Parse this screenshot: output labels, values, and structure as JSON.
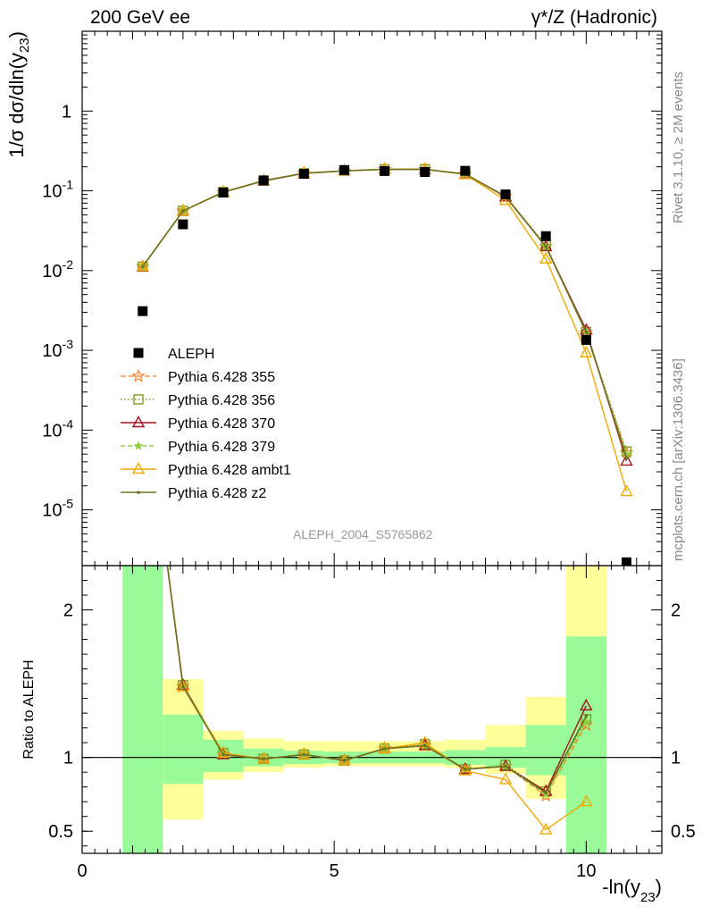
{
  "header": {
    "left": "200 GeV ee",
    "right": "γ*/Z (Hadronic)"
  },
  "side_labels": {
    "rivet": "Rivet 3.1.10, ≥ 2M events",
    "mcplots": "mcplots.cern.ch [arXiv:1306.3436]"
  },
  "analysis_tag": "ALEPH_2004_S5765862",
  "colors": {
    "aleph": "#000000",
    "p355": "#ff7f27",
    "p356": "#7d9d21",
    "p370": "#a5141e",
    "p379": "#8fcf3f",
    "ambt1": "#f2a900",
    "z2": "#707020",
    "band_inner": "#98fb98",
    "band_outer": "#ffff99"
  },
  "chart_data": [
    {
      "type": "line",
      "name": "main",
      "ylabel": "1/σ dσ/dln(y23)",
      "yscale": "log",
      "ylim": [
        2e-06,
        10
      ],
      "xlim": [
        0,
        11.5
      ],
      "y_ticks": [
        "10^-5",
        "10^-4",
        "10^-3",
        "10^-2",
        "10^-1",
        "1"
      ],
      "x": [
        1.2,
        2.0,
        2.8,
        3.6,
        4.4,
        5.2,
        6.0,
        6.8,
        7.6,
        8.4,
        9.2,
        10.0,
        10.8
      ],
      "series": [
        {
          "name": "ALEPH",
          "marker": "square",
          "values": [
            0.0031,
            0.038,
            0.095,
            0.135,
            0.163,
            0.182,
            0.177,
            0.172,
            0.178,
            0.09,
            0.027,
            0.00135,
            2.2e-06
          ]
        },
        {
          "name": "Pythia 6.428 355",
          "marker": "star",
          "values": [
            0.0112,
            0.056,
            0.096,
            0.134,
            0.166,
            0.178,
            0.186,
            0.186,
            0.162,
            0.085,
            0.02,
            0.00165,
            5.2e-05
          ]
        },
        {
          "name": "Pythia 6.428 356",
          "marker": "open-square",
          "values": [
            0.0112,
            0.056,
            0.097,
            0.134,
            0.166,
            0.179,
            0.187,
            0.187,
            0.163,
            0.085,
            0.021,
            0.0017,
            5.4e-05
          ]
        },
        {
          "name": "Pythia 6.428 370",
          "marker": "open-triangle",
          "values": [
            0.0112,
            0.056,
            0.096,
            0.133,
            0.165,
            0.178,
            0.186,
            0.186,
            0.162,
            0.084,
            0.02,
            0.0018,
            4.1e-05
          ]
        },
        {
          "name": "Pythia 6.428 379",
          "marker": "small-star",
          "values": [
            0.0112,
            0.056,
            0.096,
            0.134,
            0.166,
            0.178,
            0.186,
            0.186,
            0.162,
            0.085,
            0.02,
            0.00165,
            5e-05
          ]
        },
        {
          "name": "Pythia 6.428 ambt1",
          "marker": "open-triangle",
          "values": [
            0.0113,
            0.056,
            0.097,
            0.134,
            0.166,
            0.178,
            0.187,
            0.188,
            0.16,
            0.076,
            0.014,
            0.00093,
            1.7e-05
          ]
        },
        {
          "name": "Pythia 6.428 z2",
          "marker": "dot",
          "values": [
            0.0112,
            0.056,
            0.096,
            0.134,
            0.166,
            0.178,
            0.186,
            0.186,
            0.162,
            0.085,
            0.02,
            0.0017,
            4.5e-05
          ]
        }
      ]
    },
    {
      "type": "line",
      "name": "ratio",
      "ylabel": "Ratio to ALEPH",
      "ylim": [
        0.35,
        2.3
      ],
      "xlim": [
        0,
        11.5
      ],
      "xlabel": "-ln(y23)",
      "x_ticks": [
        "0",
        "5",
        "10"
      ],
      "y_ticks": [
        "0.5",
        "1",
        "2"
      ],
      "bins": {
        "edges": [
          0.8,
          1.6,
          2.4,
          3.2,
          4.0,
          4.8,
          5.6,
          6.4,
          7.2,
          8.0,
          8.8,
          9.6,
          10.4
        ],
        "inner_low": [
          0.35,
          0.82,
          0.9,
          0.94,
          0.955,
          0.96,
          0.96,
          0.96,
          0.95,
          0.93,
          0.88,
          0.35
        ],
        "inner_high": [
          2.3,
          1.29,
          1.12,
          1.06,
          1.045,
          1.04,
          1.04,
          1.04,
          1.05,
          1.07,
          1.22,
          1.82
        ],
        "outer_low": [
          0.35,
          0.58,
          0.85,
          0.9,
          0.93,
          0.94,
          0.94,
          0.94,
          0.93,
          0.89,
          0.72,
          0.35
        ],
        "outer_high": [
          2.3,
          1.53,
          1.18,
          1.13,
          1.11,
          1.11,
          1.11,
          1.11,
          1.12,
          1.22,
          1.41,
          2.3
        ]
      },
      "reference": 1.0,
      "x": [
        1.2,
        2.0,
        2.8,
        3.6,
        4.4,
        5.2,
        6.0,
        6.8,
        7.6,
        8.4,
        9.2,
        10.0
      ],
      "series": [
        {
          "name": "Pythia 6.428 355",
          "values": [
            3.6,
            1.48,
            1.02,
            0.99,
            1.02,
            0.98,
            1.06,
            1.08,
            0.92,
            0.94,
            0.74,
            1.22
          ]
        },
        {
          "name": "Pythia 6.428 356",
          "values": [
            3.6,
            1.49,
            1.03,
            0.99,
            1.02,
            0.98,
            1.06,
            1.09,
            0.92,
            0.95,
            0.77,
            1.26
          ]
        },
        {
          "name": "Pythia 6.428 370",
          "values": [
            3.6,
            1.49,
            1.02,
            0.99,
            1.02,
            0.98,
            1.06,
            1.08,
            0.92,
            0.94,
            0.77,
            1.35
          ]
        },
        {
          "name": "Pythia 6.428 379",
          "values": [
            3.6,
            1.48,
            1.02,
            0.99,
            1.02,
            0.98,
            1.06,
            1.08,
            0.92,
            0.94,
            0.75,
            1.24
          ]
        },
        {
          "name": "Pythia 6.428 ambt1",
          "values": [
            3.6,
            1.48,
            1.03,
            0.99,
            1.02,
            0.98,
            1.06,
            1.1,
            0.91,
            0.85,
            0.51,
            0.7
          ]
        },
        {
          "name": "Pythia 6.428 z2",
          "values": [
            3.6,
            1.48,
            1.02,
            0.99,
            1.02,
            0.98,
            1.06,
            1.08,
            0.92,
            0.94,
            0.76,
            1.28
          ]
        }
      ]
    }
  ]
}
